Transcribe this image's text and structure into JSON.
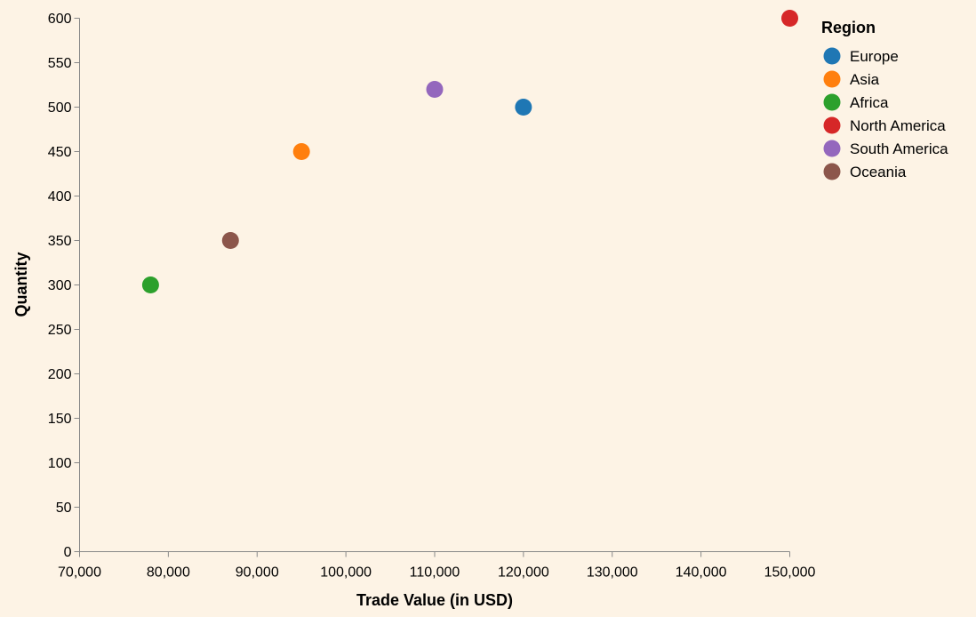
{
  "chart_data": {
    "type": "scatter",
    "xlabel": "Trade Value (in USD)",
    "ylabel": "Quantity",
    "xlim": [
      70000,
      150000
    ],
    "ylim": [
      0,
      600
    ],
    "x_ticks": [
      70000,
      80000,
      90000,
      100000,
      110000,
      120000,
      130000,
      140000,
      150000
    ],
    "x_tick_labels": [
      "70,000",
      "80,000",
      "90,000",
      "100,000",
      "110,000",
      "120,000",
      "130,000",
      "140,000",
      "150,000"
    ],
    "y_ticks": [
      0,
      50,
      100,
      150,
      200,
      250,
      300,
      350,
      400,
      450,
      500,
      550,
      600
    ],
    "y_tick_labels": [
      "0",
      "50",
      "100",
      "150",
      "200",
      "250",
      "300",
      "350",
      "400",
      "450",
      "500",
      "550",
      "600"
    ],
    "grid": false,
    "legend_title": "Region",
    "legend_position": "top-right",
    "series": [
      {
        "name": "Europe",
        "color": "#1f77b4",
        "points": [
          {
            "x": 120000,
            "y": 500
          }
        ]
      },
      {
        "name": "Asia",
        "color": "#ff7f0e",
        "points": [
          {
            "x": 95000,
            "y": 450
          }
        ]
      },
      {
        "name": "Africa",
        "color": "#2ca02c",
        "points": [
          {
            "x": 78000,
            "y": 300
          }
        ]
      },
      {
        "name": "North America",
        "color": "#d62728",
        "points": [
          {
            "x": 150000,
            "y": 600
          }
        ]
      },
      {
        "name": "South America",
        "color": "#9467bd",
        "points": [
          {
            "x": 110000,
            "y": 520
          }
        ]
      },
      {
        "name": "Oceania",
        "color": "#8c564b",
        "points": [
          {
            "x": 87000,
            "y": 350
          }
        ]
      }
    ]
  }
}
